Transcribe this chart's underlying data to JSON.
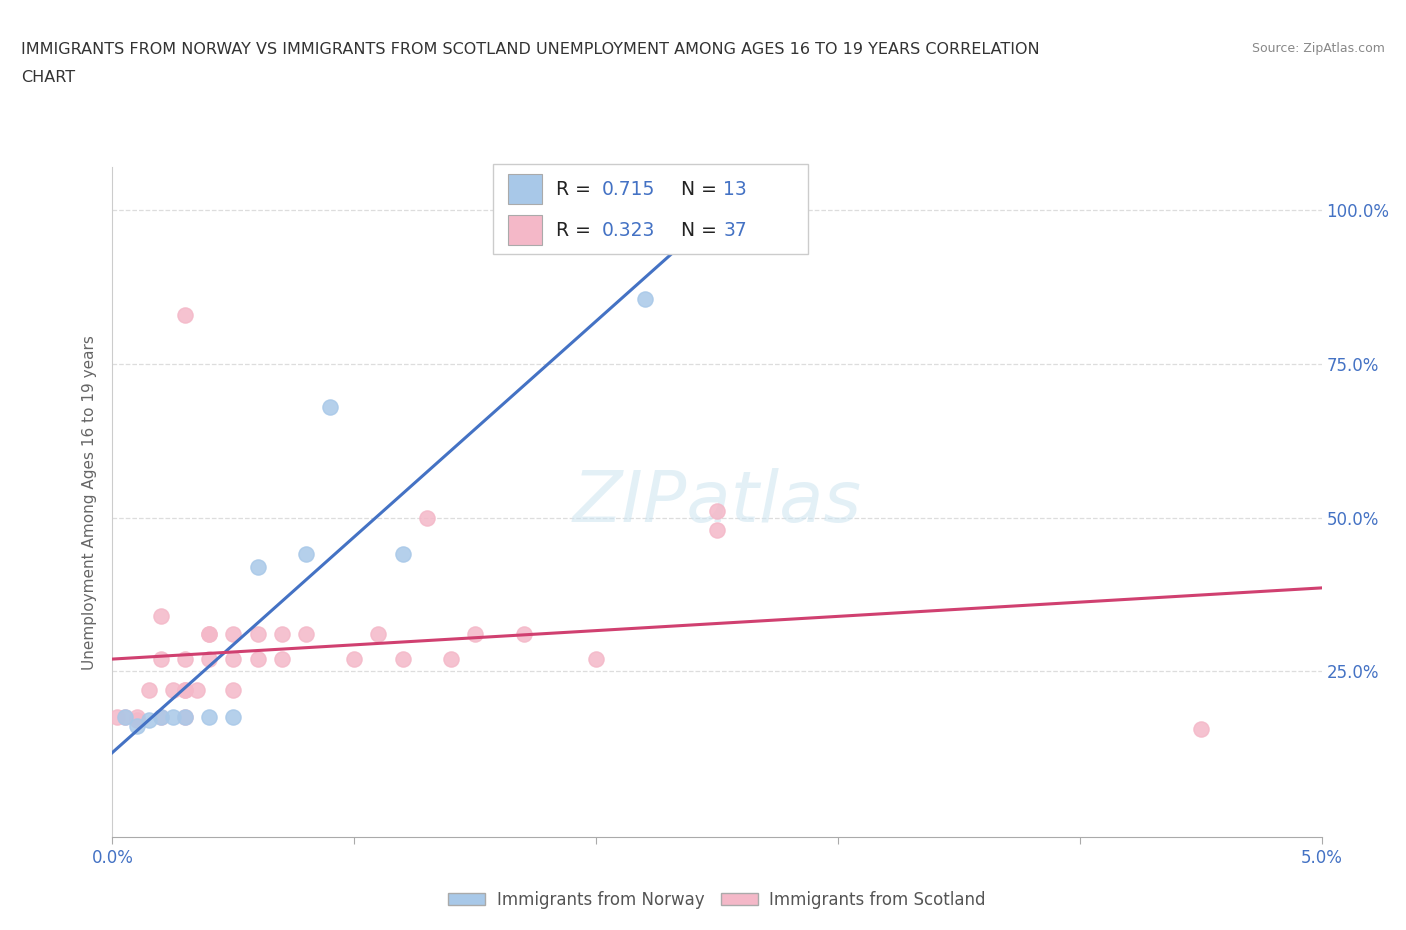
{
  "title_line1": "IMMIGRANTS FROM NORWAY VS IMMIGRANTS FROM SCOTLAND UNEMPLOYMENT AMONG AGES 16 TO 19 YEARS CORRELATION",
  "title_line2": "CHART",
  "source": "Source: ZipAtlas.com",
  "ylabel": "Unemployment Among Ages 16 to 19 years",
  "xlim": [
    0.0,
    0.05
  ],
  "ylim": [
    -0.02,
    1.07
  ],
  "norway_color": "#a8c8e8",
  "scotland_color": "#f4b8c8",
  "norway_line_color": "#4472c4",
  "scotland_line_color": "#d04070",
  "norway_scatter": [
    [
      0.0005,
      0.175
    ],
    [
      0.001,
      0.16
    ],
    [
      0.0015,
      0.17
    ],
    [
      0.002,
      0.175
    ],
    [
      0.0025,
      0.175
    ],
    [
      0.003,
      0.175
    ],
    [
      0.004,
      0.175
    ],
    [
      0.005,
      0.175
    ],
    [
      0.006,
      0.42
    ],
    [
      0.008,
      0.44
    ],
    [
      0.009,
      0.68
    ],
    [
      0.012,
      0.44
    ],
    [
      0.022,
      0.855
    ]
  ],
  "scotland_scatter": [
    [
      0.0002,
      0.175
    ],
    [
      0.0005,
      0.175
    ],
    [
      0.001,
      0.17
    ],
    [
      0.001,
      0.175
    ],
    [
      0.0015,
      0.22
    ],
    [
      0.002,
      0.175
    ],
    [
      0.002,
      0.27
    ],
    [
      0.002,
      0.34
    ],
    [
      0.0025,
      0.22
    ],
    [
      0.003,
      0.22
    ],
    [
      0.003,
      0.27
    ],
    [
      0.003,
      0.22
    ],
    [
      0.003,
      0.175
    ],
    [
      0.0035,
      0.22
    ],
    [
      0.004,
      0.27
    ],
    [
      0.004,
      0.31
    ],
    [
      0.004,
      0.31
    ],
    [
      0.005,
      0.27
    ],
    [
      0.005,
      0.31
    ],
    [
      0.005,
      0.22
    ],
    [
      0.006,
      0.27
    ],
    [
      0.006,
      0.31
    ],
    [
      0.007,
      0.31
    ],
    [
      0.007,
      0.27
    ],
    [
      0.008,
      0.31
    ],
    [
      0.01,
      0.27
    ],
    [
      0.011,
      0.31
    ],
    [
      0.012,
      0.27
    ],
    [
      0.013,
      0.5
    ],
    [
      0.014,
      0.27
    ],
    [
      0.015,
      0.31
    ],
    [
      0.017,
      0.31
    ],
    [
      0.02,
      0.27
    ],
    [
      0.025,
      0.51
    ],
    [
      0.003,
      0.83
    ],
    [
      0.045,
      0.155
    ],
    [
      0.025,
      0.48
    ]
  ],
  "norway_R": 0.715,
  "norway_N": 13,
  "scotland_R": 0.323,
  "scotland_N": 37,
  "bg_color": "#ffffff",
  "grid_color": "#dddddd",
  "watermark": "ZIPatlas",
  "label_norway": "Immigrants from Norway",
  "label_scotland": "Immigrants from Scotland"
}
